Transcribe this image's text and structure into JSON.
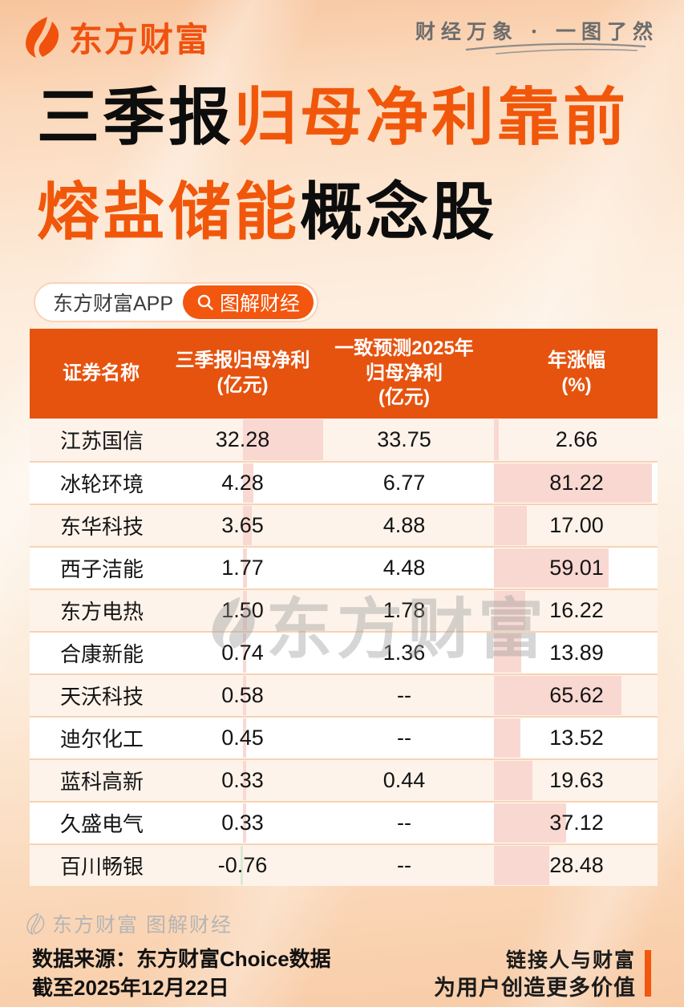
{
  "header": {
    "brand": "东方财富",
    "slogan": "财经万象 · 一图了然"
  },
  "title": {
    "l1_black": "三季报",
    "l1_orange": "归母净利靠前",
    "l2_orange": "熔盐储能",
    "l2_black": "概念股"
  },
  "search_bar": {
    "app_label": "东方财富APP",
    "button_label": "图解财经"
  },
  "table": {
    "columns": [
      "证券名称",
      "三季报归母净利\n(亿元)",
      "一致预测2025年\n归母净利\n(亿元)",
      "年涨幅\n(%)"
    ],
    "rows": [
      {
        "name": "江苏国信",
        "q3": "32.28",
        "forecast": "33.75",
        "change": "2.66"
      },
      {
        "name": "冰轮环境",
        "q3": "4.28",
        "forecast": "6.77",
        "change": "81.22"
      },
      {
        "name": "东华科技",
        "q3": "3.65",
        "forecast": "4.88",
        "change": "17.00"
      },
      {
        "name": "西子洁能",
        "q3": "1.77",
        "forecast": "4.48",
        "change": "59.01"
      },
      {
        "name": "东方电热",
        "q3": "1.50",
        "forecast": "1.78",
        "change": "16.22"
      },
      {
        "name": "合康新能",
        "q3": "0.74",
        "forecast": "1.36",
        "change": "13.89"
      },
      {
        "name": "天沃科技",
        "q3": "0.58",
        "forecast": "--",
        "change": "65.62"
      },
      {
        "name": "迪尔化工",
        "q3": "0.45",
        "forecast": "--",
        "change": "13.52"
      },
      {
        "name": "蓝科高新",
        "q3": "0.33",
        "forecast": "0.44",
        "change": "19.63"
      },
      {
        "name": "久盛电气",
        "q3": "0.33",
        "forecast": "--",
        "change": "37.12"
      },
      {
        "name": "百川畅银",
        "q3": "-0.76",
        "forecast": "--",
        "change": "28.48"
      }
    ]
  },
  "watermark": {
    "text": "东方财富"
  },
  "footer": {
    "watermark": "东方财富 图解财经",
    "source_line1": "数据来源：东方财富Choice数据",
    "source_line2": "截至2025年12月22日",
    "tagline_line1": "链接人与财富",
    "tagline_line2": "为用户创造更多价值"
  },
  "icons": {
    "brand_logo": "eastmoney-flame-icon",
    "search": "search-icon"
  },
  "colors": {
    "accent_orange": "#f3560e",
    "title_orange": "#f1570a",
    "table_header_bg": "#e6530f",
    "bar_pink": "#f9d8d2",
    "bar_negative_green": "#dcead5",
    "row_alt_bg": "#fdf3ea",
    "row_separator": "#f8d2b2"
  },
  "chart_data": {
    "type": "table",
    "title": "三季报归母净利靠前 熔盐储能概念股",
    "columns": [
      "证券名称",
      "三季报归母净利(亿元)",
      "一致预测2025年归母净利(亿元)",
      "年涨幅(%)"
    ],
    "categories": [
      "江苏国信",
      "冰轮环境",
      "东华科技",
      "西子洁能",
      "东方电热",
      "合康新能",
      "天沃科技",
      "迪尔化工",
      "蓝科高新",
      "久盛电气",
      "百川畅银"
    ],
    "series": [
      {
        "name": "三季报归母净利(亿元)",
        "values": [
          32.28,
          4.28,
          3.65,
          1.77,
          1.5,
          0.74,
          0.58,
          0.45,
          0.33,
          0.33,
          -0.76
        ]
      },
      {
        "name": "一致预测2025年归母净利(亿元)",
        "values": [
          33.75,
          6.77,
          4.88,
          4.48,
          1.78,
          1.36,
          null,
          null,
          0.44,
          null,
          null
        ]
      },
      {
        "name": "年涨幅(%)",
        "values": [
          2.66,
          81.22,
          17.0,
          59.01,
          16.22,
          13.89,
          65.62,
          13.52,
          19.63,
          37.12,
          28.48
        ]
      }
    ],
    "notes": "null 表示图中显示为 --；净利与年涨幅均带浅粉色条形背景，负值为浅绿色条"
  }
}
